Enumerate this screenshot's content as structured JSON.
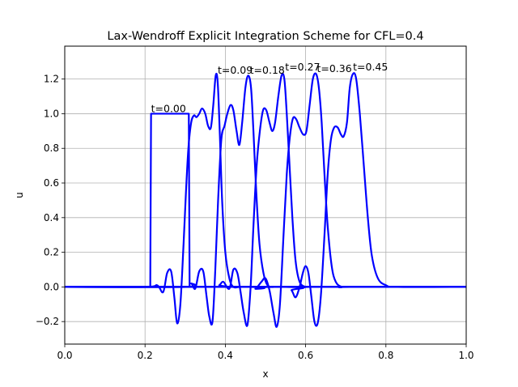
{
  "chart_data": {
    "type": "line",
    "title": "Lax-Wendroff Explicit Integration Scheme for  CFL=0.4",
    "xlabel": "x",
    "ylabel": "u",
    "xlim": [
      0,
      1
    ],
    "ylim": [
      -0.33,
      1.39
    ],
    "xticks": [
      "0.0",
      "0.2",
      "0.4",
      "0.6",
      "0.8",
      "1.0"
    ],
    "yticks": [
      "−0.2",
      "0.0",
      "0.2",
      "0.4",
      "0.6",
      "0.8",
      "1.0",
      "1.2"
    ],
    "grid": true,
    "color": "#0000ff",
    "series": [
      {
        "annotation": "t=0.00",
        "annotation_at": [
          0.215,
          1.01
        ],
        "x": [
          0,
          0.213,
          0.215,
          0.309,
          0.311,
          1
        ],
        "y": [
          0,
          0,
          1,
          1,
          0,
          0
        ]
      },
      {
        "annotation": "t=0.09",
        "annotation_at": [
          0.381,
          1.23
        ],
        "x": [
          0,
          0.2,
          0.23,
          0.245,
          0.255,
          0.265,
          0.273,
          0.28,
          0.288,
          0.296,
          0.302,
          0.308,
          0.315,
          0.322,
          0.328,
          0.335,
          0.342,
          0.35,
          0.357,
          0.364,
          0.37,
          0.376,
          0.381,
          0.386,
          0.392,
          0.4,
          0.41,
          0.42,
          0.435,
          0.45,
          1
        ],
        "y": [
          0,
          0,
          0.01,
          -0.03,
          0.08,
          0.09,
          -0.06,
          -0.21,
          -0.1,
          0.25,
          0.55,
          0.8,
          0.95,
          0.99,
          0.98,
          1.0,
          1.03,
          1.0,
          0.93,
          0.92,
          1.05,
          1.22,
          1.18,
          0.9,
          0.5,
          0.2,
          0.05,
          0.0,
          0.0,
          0.0,
          0
        ]
      },
      {
        "annotation": "t=0.18",
        "annotation_at": [
          0.461,
          1.23
        ],
        "x": [
          0,
          0.3,
          0.315,
          0.325,
          0.335,
          0.345,
          0.353,
          0.36,
          0.368,
          0.375,
          0.382,
          0.39,
          0.398,
          0.405,
          0.413,
          0.42,
          0.428,
          0.435,
          0.442,
          0.45,
          0.457,
          0.464,
          0.47,
          0.477,
          0.485,
          0.495,
          0.505,
          0.52,
          0.54,
          1
        ],
        "y": [
          0,
          0,
          0.02,
          -0.01,
          0.09,
          0.09,
          -0.05,
          -0.17,
          -0.2,
          0.1,
          0.5,
          0.85,
          0.93,
          1.0,
          1.05,
          1.02,
          0.9,
          0.82,
          0.95,
          1.15,
          1.22,
          1.15,
          0.9,
          0.55,
          0.25,
          0.08,
          0.01,
          0.0,
          0.0,
          0
        ]
      },
      {
        "annotation": "t=0.27",
        "annotation_at": [
          0.549,
          1.25
        ],
        "x": [
          0,
          0.37,
          0.385,
          0.395,
          0.41,
          0.42,
          0.43,
          0.438,
          0.446,
          0.455,
          0.463,
          0.47,
          0.478,
          0.486,
          0.494,
          0.502,
          0.51,
          0.517,
          0.524,
          0.532,
          0.54,
          0.547,
          0.553,
          0.56,
          0.567,
          0.575,
          0.585,
          0.6,
          0.62,
          1
        ],
        "y": [
          0,
          0,
          0.01,
          0.03,
          -0.01,
          0.1,
          0.08,
          -0.03,
          -0.15,
          -0.22,
          0.0,
          0.35,
          0.7,
          0.9,
          1.02,
          1.02,
          0.95,
          0.9,
          0.95,
          1.1,
          1.22,
          1.2,
          1.0,
          0.7,
          0.4,
          0.15,
          0.03,
          0.0,
          0.0,
          0
        ]
      },
      {
        "annotation": "t=0.36",
        "annotation_at": [
          0.628,
          1.24
        ],
        "x": [
          0,
          0.46,
          0.475,
          0.49,
          0.5,
          0.51,
          0.52,
          0.528,
          0.536,
          0.545,
          0.553,
          0.56,
          0.568,
          0.576,
          0.585,
          0.594,
          0.602,
          0.61,
          0.618,
          0.626,
          0.633,
          0.64,
          0.647,
          0.655,
          0.665,
          0.675,
          0.69,
          0.71,
          1
        ],
        "y": [
          0,
          0,
          -0.01,
          0.03,
          0.05,
          -0.02,
          -0.15,
          -0.23,
          -0.1,
          0.3,
          0.65,
          0.85,
          0.97,
          0.97,
          0.92,
          0.88,
          0.9,
          1.05,
          1.2,
          1.23,
          1.15,
          0.95,
          0.65,
          0.35,
          0.12,
          0.03,
          0.0,
          0.0,
          0
        ]
      },
      {
        "annotation": "t=0.45",
        "annotation_at": [
          0.718,
          1.25
        ],
        "x": [
          0,
          0.55,
          0.565,
          0.575,
          0.585,
          0.593,
          0.6,
          0.607,
          0.614,
          0.622,
          0.63,
          0.638,
          0.647,
          0.655,
          0.663,
          0.671,
          0.68,
          0.688,
          0.695,
          0.703,
          0.71,
          0.718,
          0.726,
          0.735,
          0.745,
          0.755,
          0.765,
          0.78,
          0.8,
          0.83,
          1
        ],
        "y": [
          0,
          0,
          -0.02,
          -0.06,
          0.0,
          0.08,
          0.12,
          0.08,
          -0.05,
          -0.2,
          -0.21,
          -0.05,
          0.3,
          0.65,
          0.85,
          0.92,
          0.92,
          0.88,
          0.87,
          0.95,
          1.15,
          1.23,
          1.2,
          1.0,
          0.7,
          0.4,
          0.18,
          0.05,
          0.01,
          0.0,
          0
        ]
      }
    ]
  }
}
